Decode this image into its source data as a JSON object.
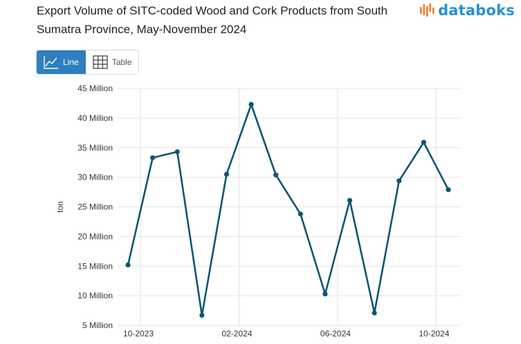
{
  "header": {
    "title": "Export Volume of SITC-coded Wood and Cork Products from South Sumatra Province, May-November 2024",
    "logo_text": "databoks"
  },
  "tabs": [
    {
      "label": "Line",
      "icon": "line-chart-icon",
      "active": true
    },
    {
      "label": "Table",
      "icon": "table-grid-icon",
      "active": false
    }
  ],
  "colors": {
    "line": "#0d5670",
    "accent": "#2d7fbf",
    "logo_blue": "#2b8fd6",
    "logo_orange": "#f07b2b"
  },
  "chart_data": {
    "type": "line",
    "title": "Export Volume of SITC-coded Wood and Cork Products from South Sumatra Province, May-November 2024",
    "ylabel": "ton",
    "xlabel": "",
    "ylim": [
      5000000,
      45000000
    ],
    "y_ticks": [
      5000000,
      10000000,
      15000000,
      20000000,
      25000000,
      30000000,
      35000000,
      40000000,
      45000000
    ],
    "y_tick_labels": [
      "5 Million",
      "10 Million",
      "15 Million",
      "20 Million",
      "25 Million",
      "30 Million",
      "35 Million",
      "40 Million",
      "45 Million"
    ],
    "x_tick_labels": [
      "10-2023",
      "02-2024",
      "06-2024",
      "10-2024"
    ],
    "grid": true,
    "series": [
      {
        "x": [
          "2023-10",
          "2023-11",
          "2023-12",
          "2024-01",
          "2024-02",
          "2024-03",
          "2024-04",
          "2024-05",
          "2024-06",
          "2024-07",
          "2024-08",
          "2024-09",
          "2024-10",
          "2024-11"
        ],
        "values": [
          15200000,
          33300000,
          34300000,
          6700000,
          30500000,
          42300000,
          30400000,
          23800000,
          10300000,
          26100000,
          7100000,
          29400000,
          35900000,
          27900000
        ]
      }
    ]
  }
}
